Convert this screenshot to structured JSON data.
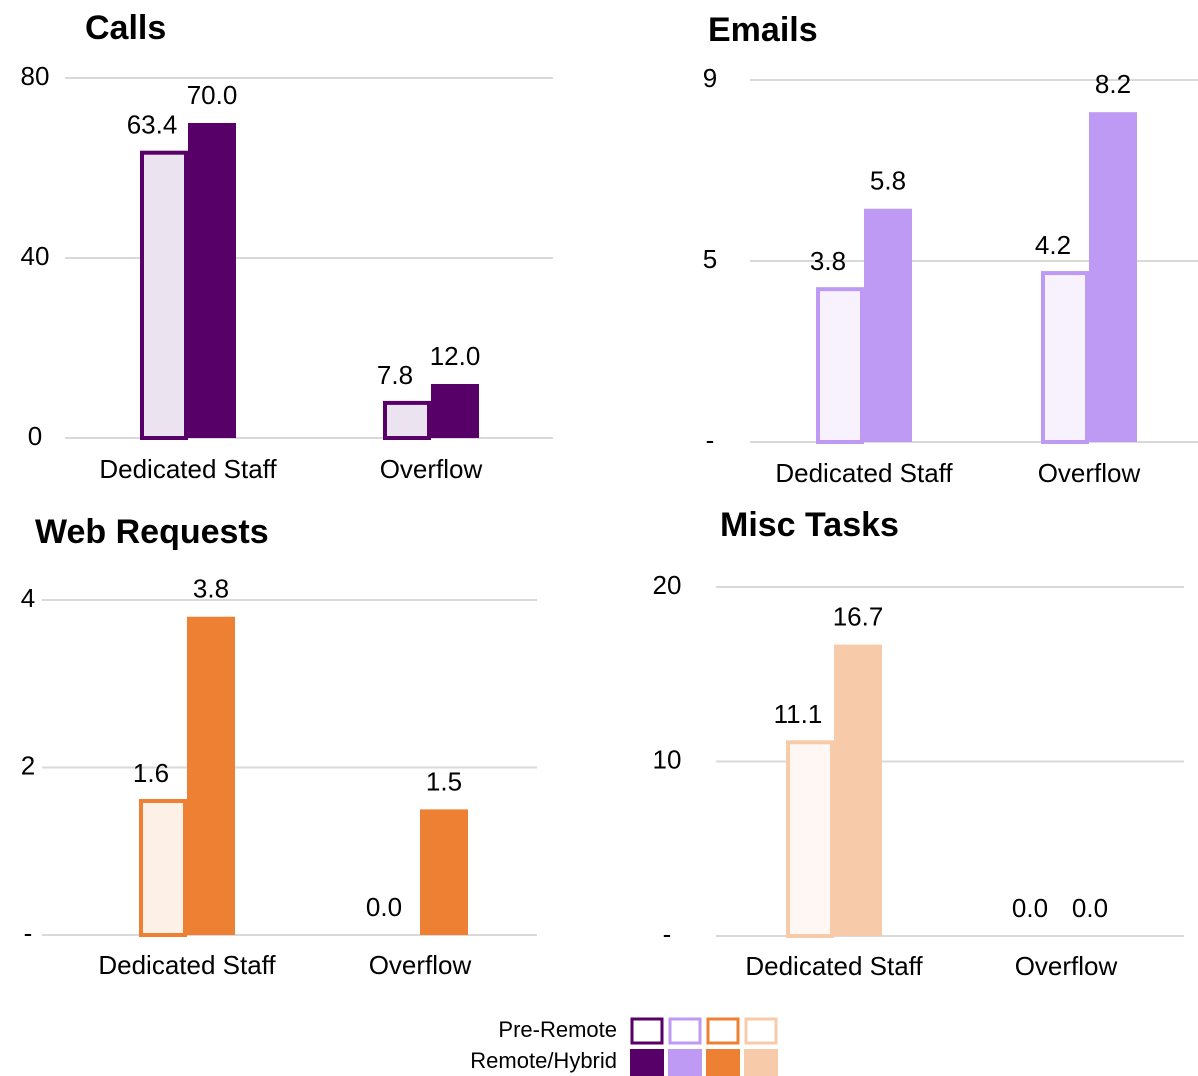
{
  "chart_data": [
    {
      "type": "bar",
      "title": "Calls",
      "categories": [
        "Dedicated Staff",
        "Overflow"
      ],
      "series": [
        {
          "color": "#560068",
          "fill": "#ebe3f0",
          "values": [
            63.4,
            7.8
          ]
        },
        {
          "color": "#560068",
          "values": [
            70,
            12
          ],
          "value_labels": [
            "70.0",
            "12.0"
          ]
        }
      ],
      "ylim": [
        0,
        80
      ],
      "yticks": [
        0,
        40,
        80
      ],
      "grid": true
    },
    {
      "type": "bar",
      "title": "Emails",
      "categories": [
        "Dedicated Staff",
        "Overflow"
      ],
      "series": [
        {
          "color": "#bf9af5",
          "fill": "#f7f2fd",
          "values": [
            3.8,
            4.2
          ]
        },
        {
          "color": "#bf9af5",
          "values": [
            5.8,
            8.2
          ]
        }
      ],
      "ylim": [
        0,
        9
      ],
      "yticks": [
        {
          "value": 0,
          "label": "-"
        },
        {
          "value": 4.5,
          "label": "5"
        },
        9
      ],
      "grid": true
    },
    {
      "type": "bar",
      "title": "Web Requests",
      "categories": [
        "Dedicated Staff",
        "Overflow"
      ],
      "series": [
        {
          "color": "#ee8033",
          "fill": "#fdf1e7",
          "values": [
            1.6,
            0
          ],
          "value_labels": [
            "1.6",
            "0.0"
          ]
        },
        {
          "color": "#ee8033",
          "values": [
            3.8,
            1.5
          ]
        }
      ],
      "ylim": [
        0,
        4
      ],
      "yticks": [
        {
          "value": 0,
          "label": "-"
        },
        2,
        4
      ],
      "grid": true
    },
    {
      "type": "bar",
      "title": "Misc Tasks",
      "categories": [
        "Dedicated Staff",
        "Overflow"
      ],
      "series": [
        {
          "color": "#f7cba9",
          "fill": "#fef7f3",
          "values": [
            11.1,
            0
          ],
          "value_labels": [
            "11.1",
            "0.0"
          ]
        },
        {
          "color": "#f7cba9",
          "values": [
            16.7,
            0
          ],
          "value_labels": [
            "16.7",
            "0.0"
          ]
        }
      ],
      "ylim": [
        0,
        20
      ],
      "yticks": [
        {
          "value": 0,
          "label": "-"
        },
        10,
        20
      ],
      "grid": true
    }
  ],
  "legend": {
    "entries": [
      "Pre-Remote",
      "Remote/Hybrid"
    ]
  }
}
